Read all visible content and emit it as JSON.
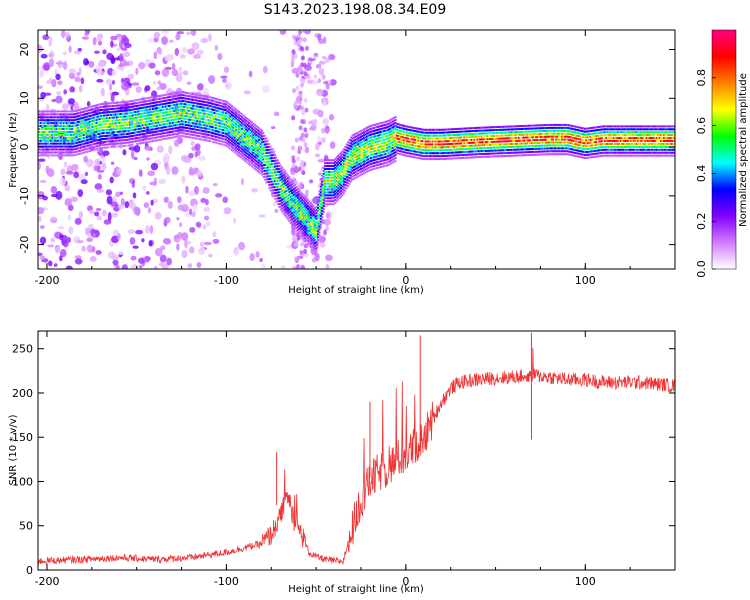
{
  "title": "S143.2023.198.08.34.E09",
  "chart_data": [
    {
      "type": "heatmap",
      "xlabel": "Height of straight line (km)",
      "ylabel": "Frequency (Hz)",
      "xlim": [
        -205,
        150
      ],
      "ylim": [
        -25,
        24
      ],
      "xticks": [
        -200,
        -100,
        0,
        100
      ],
      "yticks": [
        -20,
        -10,
        0,
        10,
        20
      ],
      "ridge": {
        "x": [
          -205,
          -185,
          -170,
          -155,
          -140,
          -125,
          -110,
          -100,
          -90,
          -80,
          -70,
          -60,
          -50,
          -45,
          -40,
          -35,
          -30,
          -20,
          -10,
          -5,
          0,
          10,
          20,
          40,
          60,
          80,
          90,
          100,
          110,
          130,
          150
        ],
        "y": [
          3,
          3,
          4.5,
          5,
          6,
          7,
          6,
          5,
          2,
          -1,
          -8,
          -13,
          -17,
          -7,
          -7,
          -5,
          -2,
          0,
          1,
          2,
          1.5,
          0.8,
          0.8,
          1.2,
          1.5,
          1.8,
          1.8,
          1,
          1.5,
          1.5,
          1.5
        ]
      },
      "colorbar": {
        "label": "Normalized spectral amplitude",
        "min": 0.0,
        "max": 1.0,
        "ticks": [
          0.0,
          0.2,
          0.4,
          0.6,
          0.8
        ],
        "colors": [
          "#ffffff",
          "#d27bff",
          "#8000ff",
          "#0000ff",
          "#00ffff",
          "#00ff00",
          "#ffff00",
          "#ff8000",
          "#ff0000",
          "#ff0080"
        ]
      }
    },
    {
      "type": "line",
      "xlabel": "Height of straight line (km)",
      "ylabel": "SNR (10 * v/v)",
      "xlim": [
        -205,
        150
      ],
      "ylim": [
        0,
        270
      ],
      "xticks": [
        -200,
        -100,
        0,
        100
      ],
      "yticks": [
        0,
        50,
        100,
        150,
        200,
        250
      ],
      "color": "#ee3333",
      "series": [
        {
          "x": [
            -205,
            -180,
            -160,
            -140,
            -120,
            -110,
            -100,
            -90,
            -80,
            -75,
            -70,
            -66,
            -62,
            -58,
            -54,
            -50,
            -45,
            -40,
            -35,
            -30,
            -25,
            -20,
            -15,
            -10,
            -5,
            0,
            5,
            10,
            15,
            20,
            25,
            30,
            40,
            50,
            60,
            70,
            80,
            90,
            100,
            110,
            120,
            130,
            140,
            150
          ],
          "y": [
            10,
            12,
            14,
            12,
            14,
            17,
            20,
            25,
            30,
            40,
            60,
            85,
            55,
            40,
            20,
            15,
            12,
            10,
            10,
            45,
            80,
            100,
            110,
            115,
            125,
            130,
            140,
            150,
            170,
            190,
            205,
            212,
            215,
            217,
            218,
            220,
            218,
            215,
            215,
            212,
            212,
            212,
            210,
            208
          ]
        }
      ]
    }
  ]
}
